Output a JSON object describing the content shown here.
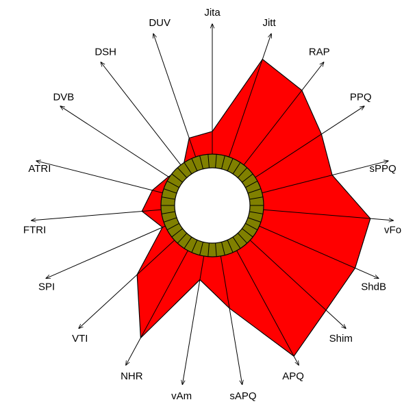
{
  "chart_data": {
    "type": "radar",
    "categories": [
      "Jita",
      "Jitt",
      "RAP",
      "PPQ",
      "sPPQ",
      "vFo",
      "ShdB",
      "Shim",
      "APQ",
      "sAPQ",
      "vAm",
      "NHR",
      "VTI",
      "SPI",
      "FTRI",
      "ATRI",
      "DVB",
      "DSH",
      "DUV"
    ],
    "values": [
      110,
      230,
      217,
      194,
      184,
      236,
      232,
      230,
      255,
      155,
      112,
      224,
      152,
      81,
      105,
      92,
      78,
      71,
      106
    ],
    "rlim": [
      0,
      270
    ],
    "color": "#ff0000"
  }
}
